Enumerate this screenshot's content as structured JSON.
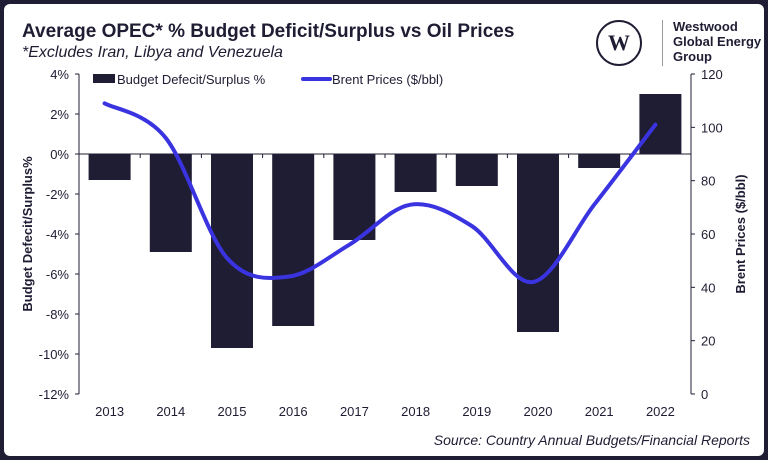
{
  "title": "Average OPEC* % Budget Deficit/Surplus vs Oil Prices",
  "subtitle": "*Excludes Iran, Libya and Venezuela",
  "logo": {
    "text_lines": [
      "Westwood",
      "Global Energy",
      "Group"
    ],
    "mark": "W"
  },
  "source": "Source: Country Annual Budgets/Financial Reports",
  "colors": {
    "bar": "#1f1d33",
    "line": "#3a33e0",
    "frame": "#1f1d33"
  },
  "chart_data": {
    "type": "bar+line",
    "categories": [
      "2013",
      "2014",
      "2015",
      "2016",
      "2017",
      "2018",
      "2019",
      "2020",
      "2021",
      "2022"
    ],
    "series": [
      {
        "name": "Budget Defecit/Surplus %",
        "type": "bar",
        "axis": "left",
        "values": [
          -1.3,
          -4.9,
          -9.7,
          -8.6,
          -4.3,
          -1.9,
          -1.6,
          -8.9,
          -0.7,
          3.0
        ]
      },
      {
        "name": "Brent Prices ($/bbl)",
        "type": "line",
        "axis": "right",
        "values": [
          109,
          96,
          51,
          44,
          56,
          71,
          63,
          42,
          71,
          101
        ]
      }
    ],
    "ylabel_left": "Budget Defecit/Surplus%",
    "ylabel_right": "Brent Prices ($/bbl)",
    "ylim_left": [
      -12,
      4
    ],
    "yticks_left": [
      "4%",
      "2%",
      "0%",
      "-2%",
      "-4%",
      "-6%",
      "-8%",
      "-10%",
      "-12%"
    ],
    "ylim_right": [
      0,
      120
    ],
    "yticks_right": [
      "120",
      "100",
      "80",
      "60",
      "40",
      "20",
      "0"
    ],
    "grid": false,
    "legend": "top"
  }
}
